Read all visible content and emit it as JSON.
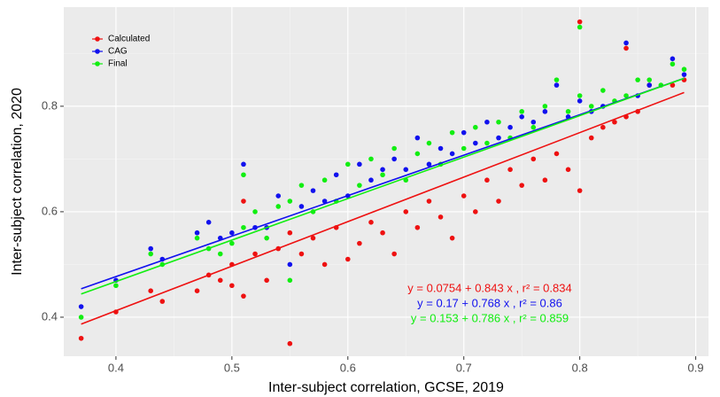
{
  "chart_data": {
    "type": "scatter",
    "x_label": "Inter-subject correlation, GCSE, 2019",
    "y_label": "Inter-subject correlation, 2020",
    "xlim": [
      0.355,
      0.911
    ],
    "ylim": [
      0.326,
      0.988
    ],
    "xticks": [
      0.4,
      0.5,
      0.6,
      0.7,
      0.8,
      0.9
    ],
    "yticks": [
      0.4,
      0.6,
      0.8
    ],
    "grid": true,
    "legend": "top-left",
    "series": [
      {
        "name": "Calculated",
        "color": "#ee1111",
        "x": [
          0.37,
          0.4,
          0.43,
          0.44,
          0.47,
          0.48,
          0.49,
          0.5,
          0.5,
          0.51,
          0.51,
          0.52,
          0.53,
          0.54,
          0.55,
          0.55,
          0.56,
          0.57,
          0.58,
          0.59,
          0.6,
          0.61,
          0.62,
          0.63,
          0.64,
          0.65,
          0.66,
          0.67,
          0.68,
          0.69,
          0.7,
          0.71,
          0.72,
          0.73,
          0.74,
          0.75,
          0.76,
          0.77,
          0.78,
          0.79,
          0.8,
          0.8,
          0.81,
          0.82,
          0.83,
          0.84,
          0.84,
          0.85,
          0.86,
          0.88,
          0.89
        ],
        "values": [
          0.36,
          0.41,
          0.45,
          0.43,
          0.45,
          0.48,
          0.47,
          0.46,
          0.5,
          0.62,
          0.44,
          0.52,
          0.47,
          0.53,
          0.35,
          0.56,
          0.52,
          0.55,
          0.5,
          0.57,
          0.51,
          0.54,
          0.58,
          0.56,
          0.52,
          0.6,
          0.57,
          0.62,
          0.59,
          0.55,
          0.63,
          0.6,
          0.66,
          0.62,
          0.68,
          0.65,
          0.7,
          0.66,
          0.71,
          0.68,
          0.96,
          0.64,
          0.74,
          0.76,
          0.77,
          0.91,
          0.78,
          0.79,
          0.84,
          0.84,
          0.85
        ]
      },
      {
        "name": "CAG",
        "color": "#1111ee",
        "x": [
          0.37,
          0.4,
          0.43,
          0.44,
          0.47,
          0.48,
          0.49,
          0.5,
          0.51,
          0.52,
          0.53,
          0.54,
          0.55,
          0.56,
          0.57,
          0.58,
          0.59,
          0.6,
          0.61,
          0.62,
          0.63,
          0.64,
          0.65,
          0.66,
          0.67,
          0.68,
          0.69,
          0.7,
          0.71,
          0.72,
          0.73,
          0.74,
          0.75,
          0.76,
          0.77,
          0.78,
          0.79,
          0.8,
          0.81,
          0.82,
          0.84,
          0.85,
          0.86,
          0.88,
          0.89
        ],
        "values": [
          0.42,
          0.47,
          0.53,
          0.51,
          0.56,
          0.58,
          0.55,
          0.56,
          0.69,
          0.57,
          0.57,
          0.63,
          0.5,
          0.61,
          0.64,
          0.62,
          0.67,
          0.63,
          0.69,
          0.66,
          0.68,
          0.7,
          0.68,
          0.74,
          0.69,
          0.72,
          0.71,
          0.75,
          0.73,
          0.77,
          0.74,
          0.76,
          0.78,
          0.77,
          0.79,
          0.84,
          0.78,
          0.81,
          0.79,
          0.8,
          0.92,
          0.82,
          0.84,
          0.89,
          0.86
        ]
      },
      {
        "name": "Final",
        "color": "#11ee11",
        "x": [
          0.37,
          0.4,
          0.43,
          0.44,
          0.47,
          0.48,
          0.49,
          0.5,
          0.51,
          0.51,
          0.52,
          0.53,
          0.54,
          0.55,
          0.55,
          0.56,
          0.57,
          0.58,
          0.59,
          0.6,
          0.61,
          0.62,
          0.63,
          0.64,
          0.65,
          0.66,
          0.67,
          0.68,
          0.69,
          0.7,
          0.71,
          0.72,
          0.73,
          0.74,
          0.75,
          0.76,
          0.77,
          0.78,
          0.79,
          0.8,
          0.8,
          0.81,
          0.82,
          0.83,
          0.84,
          0.85,
          0.86,
          0.87,
          0.88,
          0.89
        ],
        "values": [
          0.4,
          0.46,
          0.52,
          0.5,
          0.55,
          0.53,
          0.52,
          0.54,
          0.67,
          0.57,
          0.6,
          0.55,
          0.61,
          0.47,
          0.62,
          0.65,
          0.6,
          0.66,
          0.62,
          0.69,
          0.65,
          0.7,
          0.67,
          0.72,
          0.66,
          0.71,
          0.73,
          0.69,
          0.75,
          0.72,
          0.76,
          0.73,
          0.77,
          0.74,
          0.79,
          0.76,
          0.8,
          0.85,
          0.79,
          0.95,
          0.82,
          0.8,
          0.83,
          0.81,
          0.82,
          0.85,
          0.85,
          0.84,
          0.88,
          0.87
        ]
      }
    ],
    "fit_lines": [
      {
        "color": "#ee1111",
        "x": [
          0.37,
          0.89
        ],
        "values": [
          0.387,
          0.826
        ]
      },
      {
        "color": "#1111ee",
        "x": [
          0.37,
          0.89
        ],
        "values": [
          0.454,
          0.853
        ]
      },
      {
        "color": "#11ee11",
        "x": [
          0.37,
          0.89
        ],
        "values": [
          0.444,
          0.853
        ]
      }
    ],
    "annotations": [
      {
        "text": "y = 0.0754 + 0.843 x , r² = 0.834",
        "color": "#ee1111"
      },
      {
        "text": "y = 0.17 + 0.768 x , r² = 0.86",
        "color": "#1111ee"
      },
      {
        "text": "y = 0.153 + 0.786 x , r² = 0.859",
        "color": "#11ee11"
      }
    ]
  }
}
